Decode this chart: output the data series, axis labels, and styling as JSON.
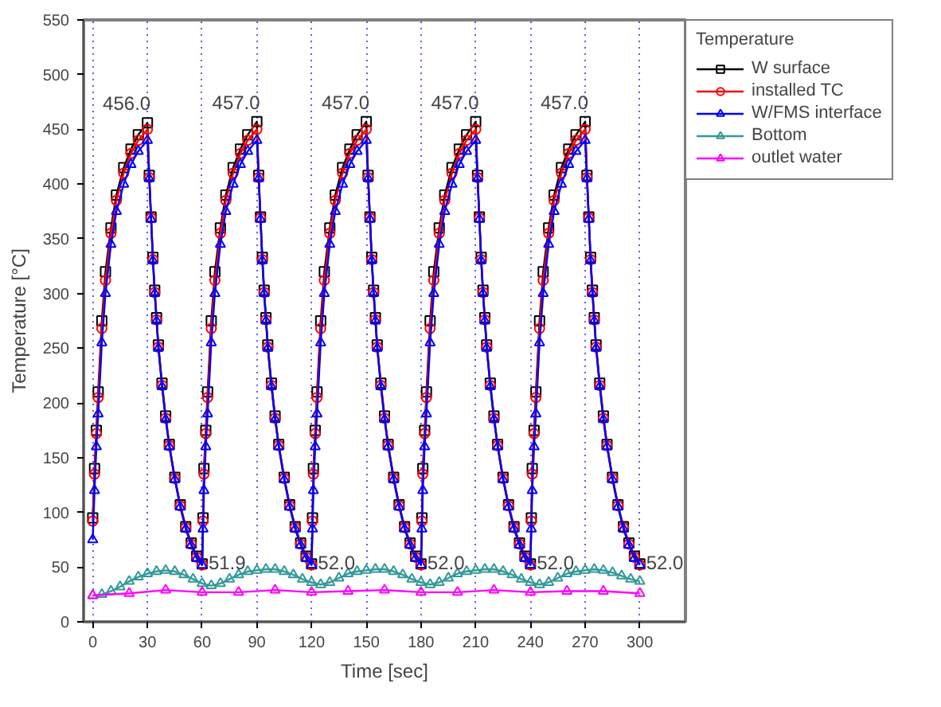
{
  "chart_data": {
    "type": "line",
    "xlabel": "Time [sec]",
    "ylabel": "Temperature [°C]",
    "legend_title": "Temperature",
    "legend": "top right",
    "grid": "x",
    "xlim": [
      -5,
      325
    ],
    "ylim": [
      0,
      550
    ],
    "xticks": [
      0,
      30,
      60,
      90,
      120,
      150,
      180,
      210,
      240,
      270,
      300
    ],
    "yticks": [
      0,
      50,
      100,
      150,
      200,
      250,
      300,
      350,
      400,
      450,
      500,
      550
    ],
    "x": [
      0,
      1,
      2,
      3,
      5,
      7,
      10,
      13,
      17,
      21,
      25,
      30,
      31,
      32,
      33,
      34,
      35,
      36,
      38,
      40,
      42,
      45,
      48,
      51,
      54,
      57,
      60,
      60.5,
      61,
      62,
      63,
      65,
      67,
      70,
      73,
      77,
      81,
      85,
      90,
      91,
      92,
      93,
      94,
      95,
      96,
      98,
      100,
      102,
      105,
      108,
      111,
      114,
      117,
      120,
      120.5,
      121,
      122,
      123,
      125,
      127,
      130,
      133,
      137,
      141,
      145,
      150,
      151,
      152,
      153,
      154,
      155,
      156,
      158,
      160,
      162,
      165,
      168,
      171,
      174,
      177,
      180,
      180.5,
      181,
      182,
      183,
      185,
      187,
      190,
      193,
      197,
      201,
      205,
      210,
      211,
      212,
      213,
      214,
      215,
      216,
      218,
      220,
      222,
      225,
      228,
      231,
      234,
      237,
      240,
      240.5,
      241,
      242,
      243,
      245,
      247,
      250,
      253,
      257,
      261,
      265,
      270,
      271,
      272,
      273,
      274,
      275,
      276,
      278,
      280,
      282,
      285,
      288,
      291,
      294,
      297,
      300
    ],
    "series": [
      {
        "name": "W surface",
        "color": "#000000",
        "marker": "square",
        "values": [
          95,
          140,
          175,
          210,
          275,
          320,
          360,
          390,
          415,
          432,
          445,
          456,
          408,
          370,
          333,
          303,
          278,
          253,
          218,
          188,
          162,
          132,
          107,
          87,
          72,
          60,
          53,
          95,
          140,
          175,
          210,
          275,
          320,
          360,
          390,
          415,
          432,
          445,
          457,
          408,
          370,
          333,
          303,
          278,
          253,
          218,
          188,
          162,
          132,
          107,
          87,
          72,
          60,
          53,
          95,
          140,
          175,
          210,
          275,
          320,
          360,
          390,
          415,
          432,
          445,
          457,
          408,
          370,
          333,
          303,
          278,
          253,
          218,
          188,
          162,
          132,
          107,
          87,
          72,
          60,
          53,
          95,
          140,
          175,
          210,
          275,
          320,
          360,
          390,
          415,
          432,
          445,
          457,
          408,
          370,
          333,
          303,
          278,
          253,
          218,
          188,
          162,
          132,
          107,
          87,
          72,
          60,
          53,
          95,
          140,
          175,
          210,
          275,
          320,
          360,
          390,
          415,
          432,
          445,
          457,
          408,
          370,
          333,
          303,
          278,
          253,
          218,
          188,
          162,
          132,
          107,
          87,
          72,
          60,
          53
        ]
      },
      {
        "name": "installed TC",
        "color": "#ff0000",
        "marker": "circle",
        "values": [
          92,
          135,
          172,
          205,
          268,
          312,
          355,
          385,
          410,
          428,
          440,
          450,
          406,
          369,
          331,
          301,
          276,
          251,
          216,
          186,
          161,
          131,
          106,
          86,
          71,
          59,
          52,
          92,
          135,
          172,
          205,
          268,
          312,
          355,
          385,
          410,
          428,
          440,
          450,
          406,
          369,
          331,
          301,
          276,
          251,
          216,
          186,
          161,
          131,
          106,
          86,
          71,
          59,
          52,
          92,
          135,
          172,
          205,
          268,
          312,
          355,
          385,
          410,
          428,
          440,
          450,
          406,
          369,
          331,
          301,
          276,
          251,
          216,
          186,
          161,
          131,
          106,
          86,
          71,
          59,
          52,
          92,
          135,
          172,
          205,
          268,
          312,
          355,
          385,
          410,
          428,
          440,
          450,
          406,
          369,
          331,
          301,
          276,
          251,
          216,
          186,
          161,
          131,
          106,
          86,
          71,
          59,
          52,
          92,
          135,
          172,
          205,
          268,
          312,
          355,
          385,
          410,
          428,
          440,
          450,
          406,
          369,
          331,
          301,
          276,
          251,
          216,
          186,
          161,
          131,
          106,
          86,
          71,
          59,
          52
        ]
      },
      {
        "name": "W/FMS interface",
        "color": "#0000ff",
        "marker": "triangle",
        "values": [
          75,
          120,
          160,
          190,
          255,
          300,
          345,
          375,
          400,
          418,
          430,
          440,
          405,
          368,
          330,
          300,
          275,
          250,
          215,
          185,
          160,
          130,
          105,
          85,
          70,
          58,
          51.9,
          85,
          120,
          160,
          190,
          255,
          300,
          345,
          375,
          400,
          418,
          430,
          440,
          405,
          368,
          330,
          300,
          275,
          250,
          215,
          185,
          160,
          130,
          105,
          85,
          70,
          58,
          52.0,
          85,
          120,
          160,
          190,
          255,
          300,
          345,
          375,
          400,
          418,
          430,
          440,
          405,
          368,
          330,
          300,
          275,
          250,
          215,
          185,
          160,
          130,
          105,
          85,
          70,
          58,
          52.0,
          85,
          120,
          160,
          190,
          255,
          300,
          345,
          375,
          400,
          418,
          430,
          440,
          405,
          368,
          330,
          300,
          275,
          250,
          215,
          185,
          160,
          130,
          105,
          85,
          70,
          58,
          52.0,
          85,
          120,
          160,
          190,
          255,
          300,
          345,
          375,
          400,
          418,
          430,
          440,
          405,
          368,
          330,
          300,
          275,
          250,
          215,
          185,
          160,
          130,
          105,
          85,
          70,
          58,
          52.0
        ]
      },
      {
        "name": "Bottom",
        "color": "#339999",
        "marker": "triangle",
        "x": [
          0,
          5,
          10,
          15,
          20,
          25,
          30,
          35,
          40,
          45,
          50,
          55,
          60,
          65,
          70,
          75,
          80,
          85,
          90,
          95,
          100,
          105,
          110,
          115,
          120,
          125,
          130,
          135,
          140,
          145,
          150,
          155,
          160,
          165,
          170,
          175,
          180,
          185,
          190,
          195,
          200,
          205,
          210,
          215,
          220,
          225,
          230,
          235,
          240,
          245,
          250,
          255,
          260,
          265,
          270,
          275,
          280,
          285,
          290,
          295,
          300
        ],
        "values": [
          24,
          25,
          28,
          32,
          37,
          41,
          44,
          46,
          47,
          46,
          43,
          39,
          35,
          33,
          35,
          39,
          43,
          46,
          47,
          48,
          48,
          46,
          43,
          39,
          36,
          34,
          36,
          40,
          44,
          46,
          47,
          48,
          48,
          46,
          43,
          39,
          36,
          34,
          36,
          40,
          44,
          46,
          47,
          48,
          48,
          46,
          43,
          39,
          36,
          34,
          36,
          40,
          44,
          46,
          47,
          48,
          47,
          45,
          42,
          39,
          37
        ]
      },
      {
        "name": "outlet water",
        "color": "#ff00ff",
        "marker": "triangle",
        "x": [
          0,
          20,
          40,
          60,
          80,
          100,
          120,
          140,
          160,
          180,
          200,
          220,
          240,
          260,
          280,
          300
        ],
        "values": [
          24,
          26,
          29,
          27,
          27,
          29,
          27,
          28,
          29,
          27,
          27,
          29,
          27,
          28,
          28,
          26
        ]
      }
    ],
    "annotations": [
      {
        "text": "456.0",
        "x": 30,
        "y": 456
      },
      {
        "text": "457.0",
        "x": 90,
        "y": 457
      },
      {
        "text": "457.0",
        "x": 150,
        "y": 457
      },
      {
        "text": "457.0",
        "x": 210,
        "y": 457
      },
      {
        "text": "457.0",
        "x": 270,
        "y": 457
      },
      {
        "text": "51.9",
        "x": 60,
        "y": 51.9
      },
      {
        "text": "52.0",
        "x": 120,
        "y": 52.0
      },
      {
        "text": "52.0",
        "x": 180,
        "y": 52.0
      },
      {
        "text": "52.0",
        "x": 240,
        "y": 52.0
      },
      {
        "text": "52.0",
        "x": 300,
        "y": 52.0
      }
    ]
  }
}
